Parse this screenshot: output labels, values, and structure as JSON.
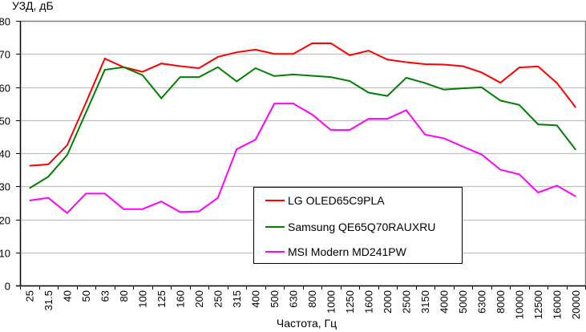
{
  "chart_data": {
    "type": "line",
    "title": "",
    "ylabel": "УЗД, дБ",
    "xlabel": "Частота, Гц",
    "ylim": [
      0,
      80
    ],
    "yticks": [
      0,
      10,
      20,
      30,
      40,
      50,
      60,
      70,
      80
    ],
    "grid": true,
    "legend_position": "bottom-center",
    "categories": [
      "25",
      "31.5",
      "40",
      "50",
      "63",
      "80",
      "100",
      "125",
      "160",
      "200",
      "250",
      "315",
      "400",
      "500",
      "630",
      "800",
      "1000",
      "1250",
      "1600",
      "2000",
      "2500",
      "3150",
      "4000",
      "5000",
      "6300",
      "8000",
      "10000",
      "12500",
      "16000",
      "20000"
    ],
    "series": [
      {
        "name": "LG OLED65C9PLA",
        "color": "#ff0000",
        "values": [
          36.2,
          36.6,
          42.4,
          55.3,
          68.6,
          66.0,
          64.6,
          67.1,
          66.3,
          65.7,
          69.1,
          70.5,
          71.3,
          70.0,
          70.0,
          73.2,
          73.2,
          69.6,
          71.0,
          68.3,
          67.5,
          66.9,
          66.8,
          66.3,
          64.4,
          61.3,
          65.9,
          66.2,
          61.2,
          53.8
        ]
      },
      {
        "name": "Samsung QE65Q70RAUXRU",
        "color": "#008000",
        "values": [
          29.4,
          32.9,
          39.4,
          52.3,
          65.2,
          66.0,
          63.6,
          56.6,
          63.0,
          63.0,
          66.0,
          61.7,
          65.7,
          63.3,
          63.8,
          63.4,
          63.0,
          61.8,
          58.3,
          57.3,
          62.8,
          61.2,
          59.2,
          59.6,
          59.9,
          55.9,
          54.6,
          48.7,
          48.4,
          41.0
        ]
      },
      {
        "name": "MSI Modern MD241PW",
        "color": "#ff00ff",
        "values": [
          25.7,
          26.5,
          21.9,
          27.8,
          27.8,
          23.1,
          23.1,
          25.4,
          22.2,
          22.4,
          26.5,
          41.2,
          44.1,
          55.0,
          55.0,
          51.7,
          47.0,
          47.0,
          50.4,
          50.4,
          53.0,
          45.6,
          44.5,
          42.0,
          39.6,
          35.0,
          33.6,
          28.1,
          30.2,
          26.9
        ]
      }
    ]
  }
}
